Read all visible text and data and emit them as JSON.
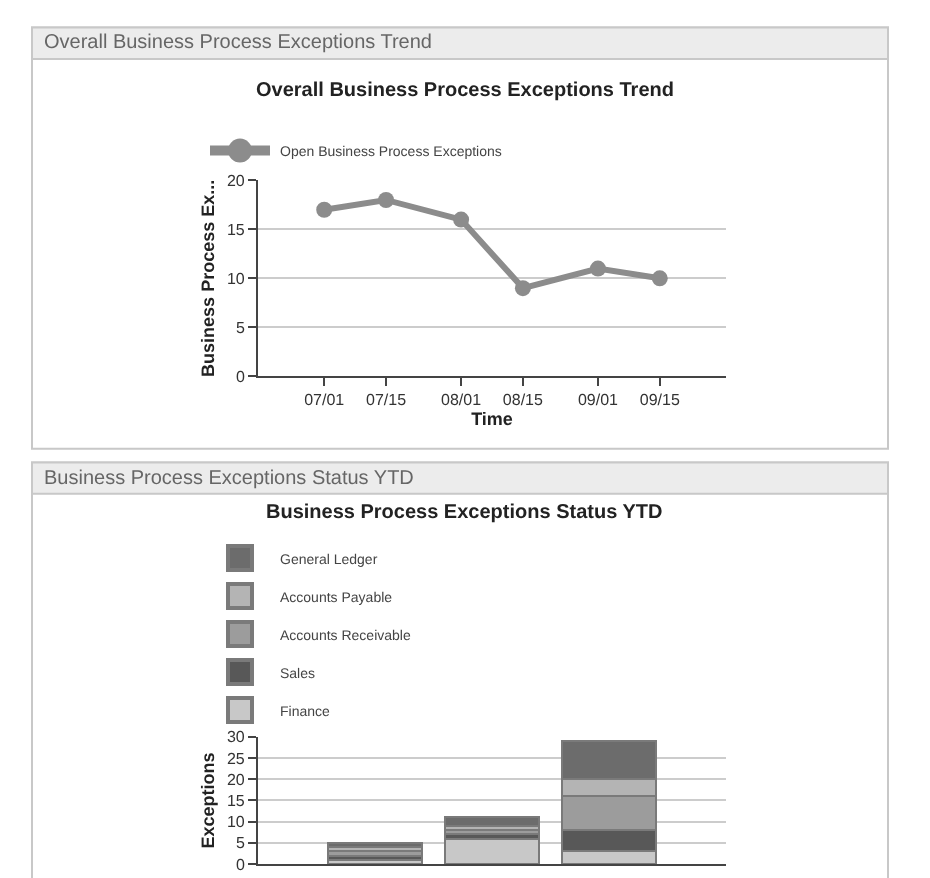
{
  "chart_data": [
    {
      "type": "line",
      "title": "Overall Business Process Exceptions Trend",
      "annotations": [
        "Overall Business Process Exceptions Trend"
      ],
      "xlabel": "Time",
      "ylabel": "Business Process Ex...",
      "x": [
        "--07-01",
        "--07-15",
        "--08-01",
        "--08-15",
        "--09-01",
        "--09-15"
      ],
      "series": [
        {
          "name": "Open Business Process Exceptions",
          "color": "#8c8c8c",
          "values": [
            17,
            18,
            16,
            9,
            11,
            10
          ]
        }
      ],
      "xlim": [
        "--06-16",
        "--09-30"
      ],
      "xticks": [
        {
          "value": "--07-01",
          "label": "07/01"
        },
        {
          "value": "--07-15",
          "label": "07/15"
        },
        {
          "value": "--08-01",
          "label": "08/01"
        },
        {
          "value": "--08-15",
          "label": "08/15"
        },
        {
          "value": "--09-01",
          "label": "09/01"
        },
        {
          "value": "--09-15",
          "label": "09/15"
        }
      ],
      "ylim": [
        0,
        20
      ],
      "yticks": [
        0,
        5,
        10,
        15,
        20
      ],
      "grid": "y",
      "legend": "top left",
      "marker": "circle",
      "line_style": "solid"
    },
    {
      "type": "bar",
      "stacked": true,
      "title": "Business Process Exceptions Status YTD",
      "annotations": [
        "Business Process Exceptions Status YTD"
      ],
      "ylabel": "Exceptions",
      "categories": [
        null,
        null,
        null
      ],
      "series": [
        {
          "name": "Finance",
          "color": "#c8c8c8",
          "values": [
            1,
            6,
            3
          ]
        },
        {
          "name": "Sales",
          "color": "#585858",
          "values": [
            1,
            1,
            5
          ]
        },
        {
          "name": "Accounts Receivable",
          "color": "#9c9c9c",
          "values": [
            1,
            1,
            8
          ]
        },
        {
          "name": "Accounts Payable",
          "color": "#b4b4b4",
          "values": [
            1,
            1,
            4
          ]
        },
        {
          "name": "General Ledger",
          "color": "#6c6c6c",
          "values": [
            1,
            2,
            9
          ]
        }
      ],
      "ylim": [
        0,
        30
      ],
      "yticks": [
        0,
        5,
        10,
        15,
        20,
        25,
        30
      ],
      "grid": "y",
      "legend": "top left",
      "tick_labels": "y"
    }
  ]
}
